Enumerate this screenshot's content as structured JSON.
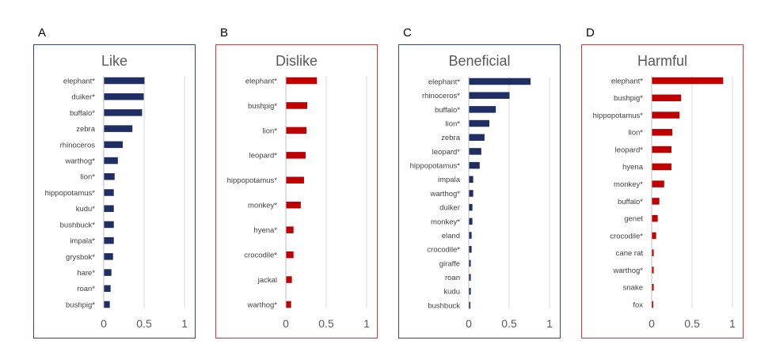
{
  "chart_data": [
    {
      "type": "bar",
      "orientation": "horizontal",
      "panel": "A",
      "title": "Like",
      "color": "#1f2f63",
      "border_color": "#2e4a7d",
      "categories": [
        "elephant*",
        "duiker*",
        "buffalo*",
        "zebra",
        "rhinoceros",
        "warthog*",
        "lion*",
        "hippopotamus*",
        "kudu*",
        "bushbuck*",
        "impala*",
        "grysbok*",
        "hare*",
        "roan*",
        "bushpig*"
      ],
      "values": [
        0.5,
        0.49,
        0.47,
        0.35,
        0.23,
        0.17,
        0.13,
        0.12,
        0.12,
        0.12,
        0.12,
        0.11,
        0.09,
        0.08,
        0.07
      ],
      "xlim": [
        0,
        1
      ],
      "xticks": [
        "0",
        "0.5",
        "1"
      ],
      "grid": true,
      "legend": "none"
    },
    {
      "type": "bar",
      "orientation": "horizontal",
      "panel": "B",
      "title": "Dislike",
      "color": "#c00000",
      "border_color": "#d9383a",
      "categories": [
        "elephant*",
        "bushpig*",
        "lion*",
        "leopard*",
        "hippopotamus*",
        "monkey*",
        "hyena*",
        "crocodile*",
        "jackal",
        "warthog*"
      ],
      "values": [
        0.38,
        0.26,
        0.25,
        0.24,
        0.22,
        0.18,
        0.09,
        0.09,
        0.07,
        0.06
      ],
      "xlim": [
        0,
        1
      ],
      "xticks": [
        "0",
        "0.5",
        "1"
      ],
      "grid": true,
      "legend": "none"
    },
    {
      "type": "bar",
      "orientation": "horizontal",
      "panel": "C",
      "title": "Beneficial",
      "color": "#1f2f63",
      "border_color": "#2e4a7d",
      "categories": [
        "elephant*",
        "rhinoceros*",
        "buffalo*",
        "lion*",
        "zebra",
        "leopard*",
        "hippopotamus*",
        "impala",
        "warthog*",
        "duiker",
        "monkey*",
        "eland",
        "crocodile*",
        "giraffe",
        "roan",
        "kudu",
        "bushbuck"
      ],
      "values": [
        0.76,
        0.5,
        0.33,
        0.25,
        0.19,
        0.15,
        0.13,
        0.05,
        0.05,
        0.04,
        0.04,
        0.03,
        0.03,
        0.02,
        0.02,
        0.02,
        0.01
      ],
      "xlim": [
        0,
        1
      ],
      "xticks": [
        "0",
        "0.5",
        "1"
      ],
      "grid": true,
      "legend": "none"
    },
    {
      "type": "bar",
      "orientation": "horizontal",
      "panel": "D",
      "title": "Harmful",
      "color": "#c00000",
      "border_color": "#d9383a",
      "categories": [
        "elephant*",
        "bushpig*",
        "hippopotamus*",
        "lion*",
        "leopard*",
        "hyena",
        "monkey*",
        "buffalo*",
        "genet",
        "crocodile*",
        "cane rat",
        "warthog*",
        "snake",
        "fox"
      ],
      "values": [
        0.88,
        0.36,
        0.34,
        0.25,
        0.24,
        0.24,
        0.15,
        0.09,
        0.07,
        0.05,
        0.02,
        0.02,
        0.02,
        0.01
      ],
      "xlim": [
        0,
        1
      ],
      "xticks": [
        "0",
        "0.5",
        "1"
      ],
      "grid": true,
      "legend": "none"
    }
  ]
}
